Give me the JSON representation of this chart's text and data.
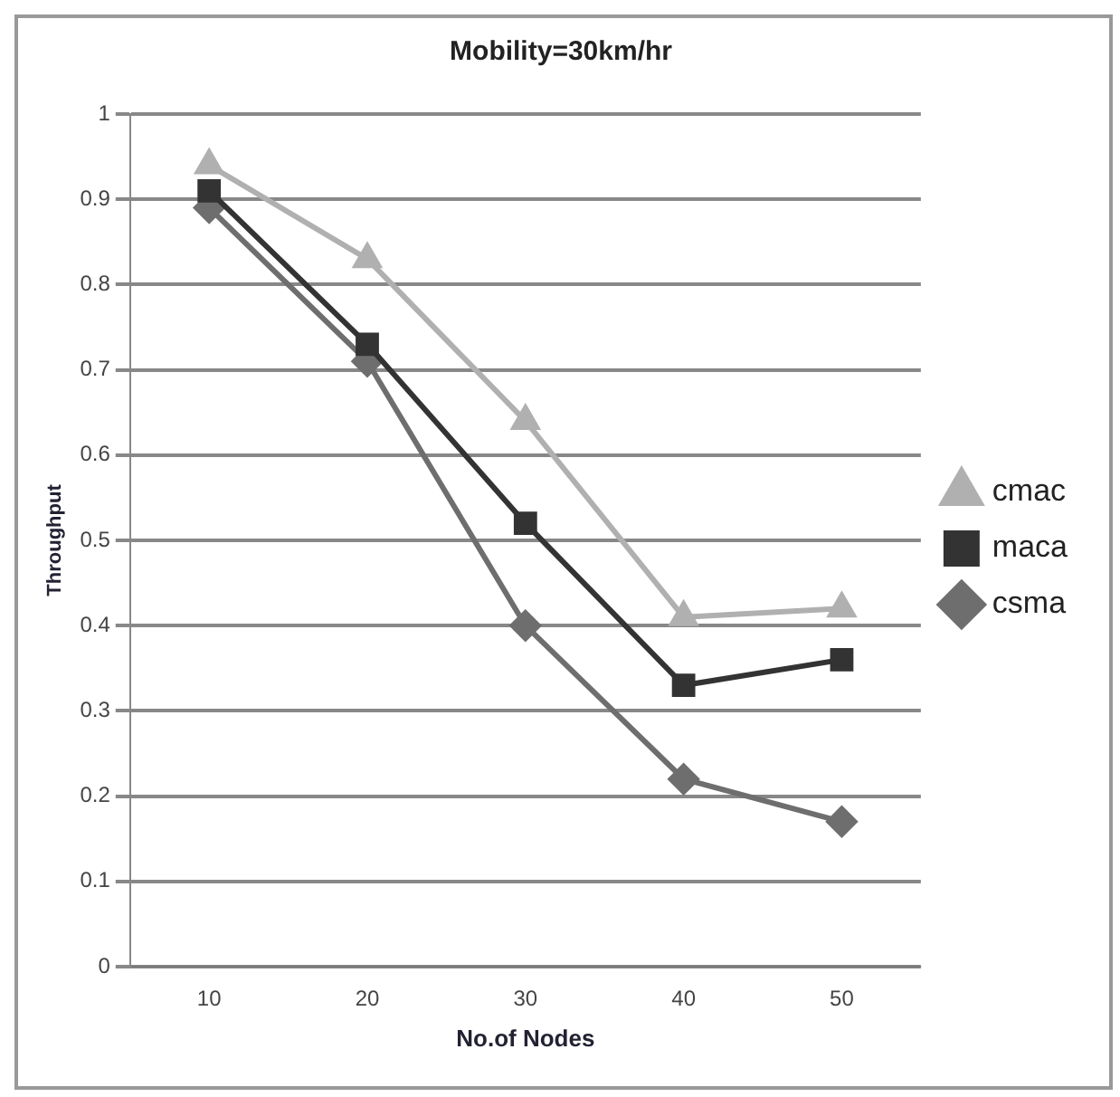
{
  "chart_data": {
    "type": "line",
    "title": "Mobility=30km/hr",
    "xlabel": "No.of Nodes",
    "ylabel": "Throughput",
    "categories": [
      "10",
      "20",
      "30",
      "40",
      "50"
    ],
    "series": [
      {
        "name": "csma",
        "color": "#6e6e6e",
        "marker": "diamond",
        "values": [
          0.89,
          0.71,
          0.4,
          0.22,
          0.17
        ]
      },
      {
        "name": "maca",
        "color": "#333333",
        "marker": "square",
        "values": [
          0.91,
          0.73,
          0.52,
          0.33,
          0.36
        ]
      },
      {
        "name": "cmac",
        "color": "#b0b0b0",
        "marker": "triangle",
        "values": [
          0.94,
          0.83,
          0.64,
          0.41,
          0.42
        ]
      }
    ],
    "ylim": [
      0,
      1
    ],
    "yticks": [
      0,
      0.1,
      0.2,
      0.3,
      0.4,
      0.5,
      0.6,
      0.7,
      0.8,
      0.9,
      1
    ],
    "grid": "y",
    "legend": "right",
    "line_style": "solid"
  }
}
